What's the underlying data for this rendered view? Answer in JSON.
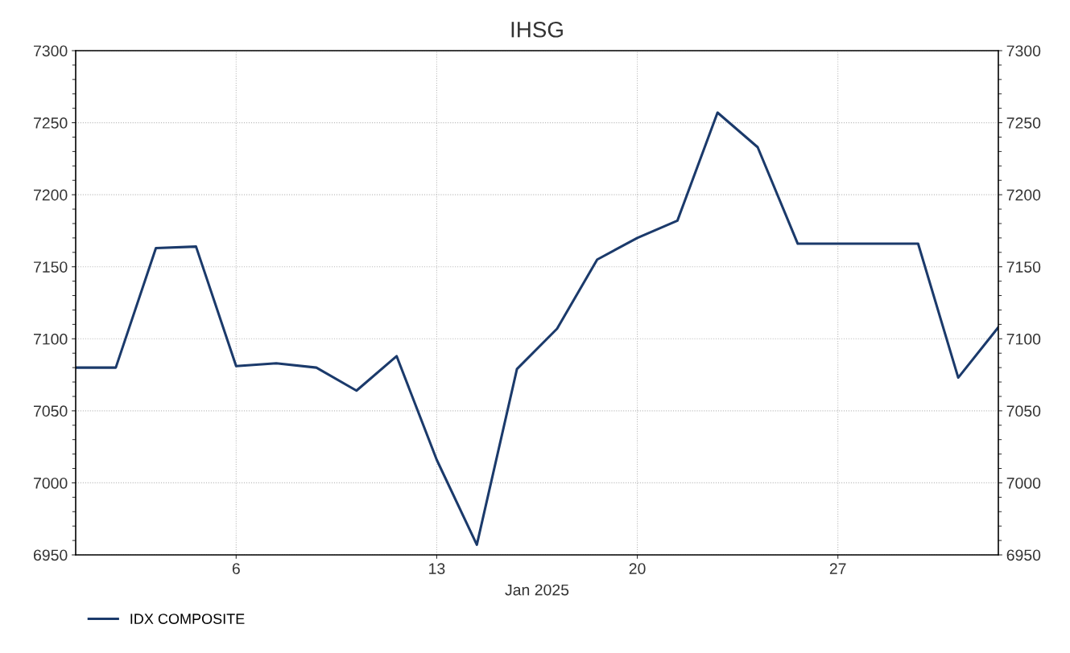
{
  "chart_data": {
    "type": "line",
    "title": "IHSG",
    "xlabel": "Jan 2025",
    "categories": [
      null,
      null,
      null,
      null,
      "6",
      null,
      null,
      null,
      null,
      "13",
      null,
      null,
      null,
      null,
      "20",
      null,
      null,
      null,
      null,
      "27",
      null,
      null,
      null,
      null
    ],
    "series": [
      {
        "name": "IDX COMPOSITE",
        "color": "#1b3a6b",
        "values": [
          7080,
          7080,
          7163,
          7164,
          7081,
          7083,
          7080,
          7064,
          7088,
          7016,
          6957,
          7079,
          7107,
          7155,
          7170,
          7182,
          7257,
          7233,
          7166,
          7166,
          7166,
          7166,
          7073,
          7108
        ]
      }
    ],
    "ylim": [
      6950,
      7300
    ],
    "yticks": [
      6950,
      7000,
      7050,
      7100,
      7150,
      7200,
      7250,
      7300
    ],
    "y2lim": [
      6950,
      7300
    ],
    "y2ticks": [
      6950,
      7000,
      7050,
      7100,
      7150,
      7200,
      7250,
      7300
    ],
    "grid": true,
    "legend": "bottom left",
    "marker": "none",
    "line_style": "solid"
  }
}
